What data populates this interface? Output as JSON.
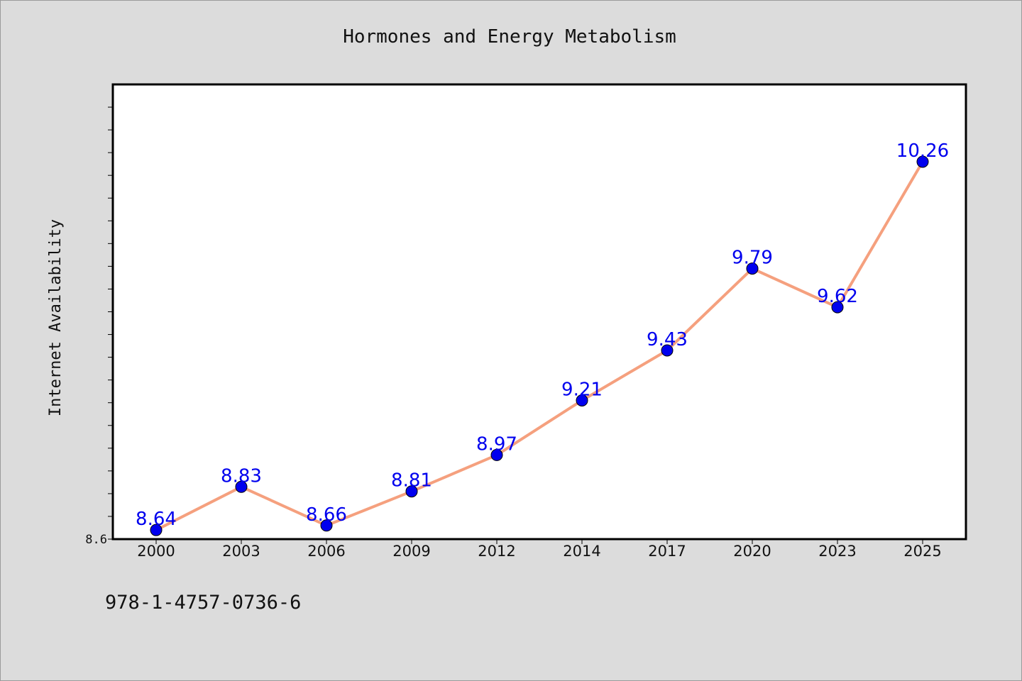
{
  "chart_data": {
    "type": "line",
    "title": "Hormones and Energy Metabolism",
    "xlabel": "",
    "ylabel": "Internet Availability",
    "categories": [
      "2000",
      "2003",
      "2006",
      "2009",
      "2012",
      "2014",
      "2017",
      "2020",
      "2023",
      "2025"
    ],
    "series": [
      {
        "values": [
          8.64,
          8.83,
          8.66,
          8.81,
          8.97,
          9.21,
          9.43,
          9.79,
          9.62,
          10.26
        ],
        "data_labels": [
          "8.64",
          "8.83",
          "8.66",
          "8.81",
          "8.97",
          "9.21",
          "9.43",
          "9.79",
          "9.62",
          "10.26"
        ],
        "line_color": "#f5a07e",
        "marker_color": "#0000ee",
        "label_color": "#0000ee"
      }
    ],
    "ylim": [
      8.6,
      10.6
    ],
    "y_tick_labels": [
      {
        "value": 8.6,
        "label": "8.6"
      }
    ],
    "grid": false,
    "legend": "none"
  },
  "footer": {
    "isbn": "978-1-4757-0736-6"
  }
}
